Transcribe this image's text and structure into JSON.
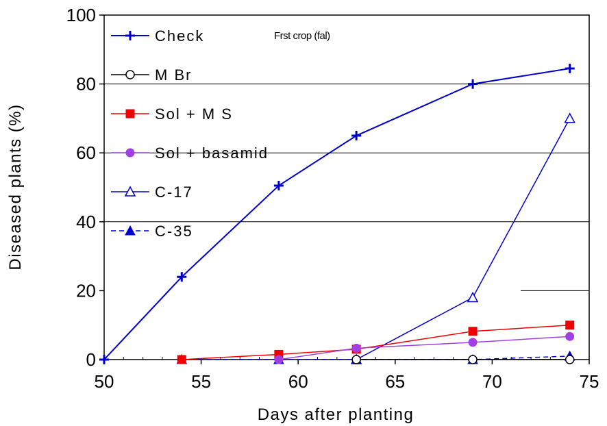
{
  "chart_data": {
    "type": "line",
    "title": "",
    "annotation": "Frst crop (fal)",
    "xlabel": "Days after planting",
    "ylabel": "Diseased plants  (%)",
    "xlim": [
      50,
      75
    ],
    "ylim": [
      0,
      100
    ],
    "xticks": [
      50,
      55,
      60,
      65,
      70,
      75
    ],
    "yticks": [
      0,
      20,
      40,
      60,
      80,
      100
    ],
    "grid": "horizontal at 40, 60, 80",
    "legend_position": "top-left, inside",
    "series": [
      {
        "name": "Check",
        "color": "#0000cc",
        "marker": "plus",
        "dash": "solid",
        "x": [
          50,
          54,
          59,
          63,
          69,
          74
        ],
        "y": [
          0,
          24,
          50.5,
          65,
          80,
          84.5
        ]
      },
      {
        "name": "M Br",
        "color": "#000000",
        "marker": "circle-open",
        "dash": "solid",
        "x": [
          63,
          69,
          74
        ],
        "y": [
          0,
          0,
          0
        ]
      },
      {
        "name": "Sol + M S",
        "color": "#ee0000",
        "marker": "square",
        "dash": "solid",
        "x": [
          54,
          59,
          63,
          69,
          74
        ],
        "y": [
          0,
          1.5,
          3,
          8.2,
          10
        ]
      },
      {
        "name": "Sol + basamid",
        "color": "#a040e0",
        "marker": "circle",
        "dash": "solid",
        "x": [
          59,
          63,
          69,
          74
        ],
        "y": [
          0,
          3.3,
          5,
          6.7
        ]
      },
      {
        "name": "C-17",
        "color": "#0000cc",
        "marker": "triangle-open",
        "dash": "solid",
        "x": [
          63,
          69,
          74
        ],
        "y": [
          0,
          18,
          70
        ]
      },
      {
        "name": "C-35",
        "color": "#0000cc",
        "marker": "triangle",
        "dash": "dashed",
        "x": [
          54,
          59,
          63,
          69,
          74
        ],
        "y": [
          0,
          0,
          0,
          0,
          1
        ]
      }
    ]
  }
}
